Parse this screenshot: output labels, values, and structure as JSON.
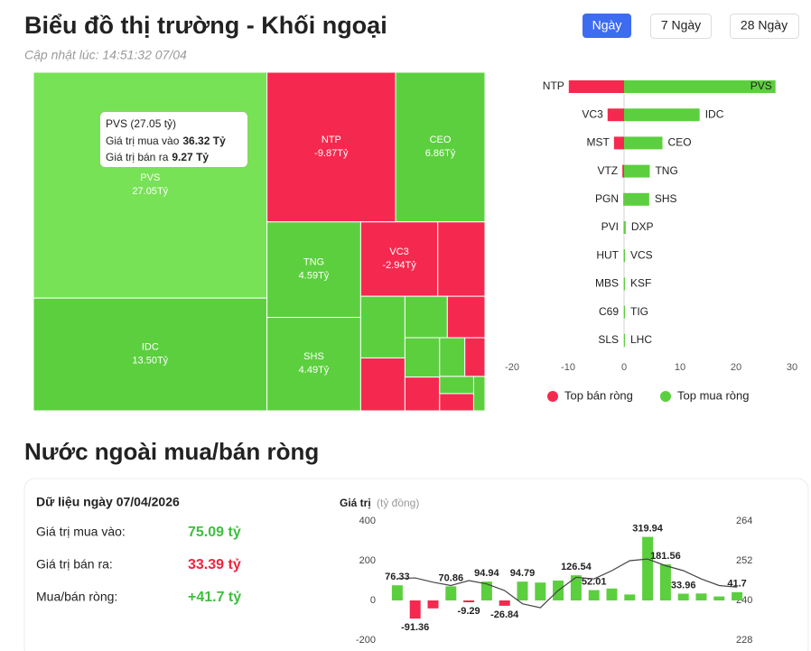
{
  "header": {
    "title": "Biểu đồ thị trường - Khối ngoại",
    "updated": "Cập nhật lúc: 14:51:32 07/04",
    "tabs": [
      "Ngày",
      "7 Ngày",
      "28 Ngày"
    ]
  },
  "tooltip": {
    "title": "PVS (27.05 tỷ)",
    "buy_label": "Giá trị mua vào",
    "buy_value": "36.32 Tỷ",
    "sell_label": "Giá trị bán ra",
    "sell_value": "9.27 Tỷ"
  },
  "section": {
    "title": "Nước ngoài mua/bán ròng",
    "date": "Dữ liệu ngày 07/04/2026",
    "rows": [
      [
        "Giá trị mua vào:",
        "75.09 tỷ"
      ],
      [
        "Giá trị bán ra:",
        "33.39 tỷ"
      ],
      [
        "Mua/bán ròng:",
        "+41.7 tỷ"
      ]
    ]
  },
  "chart_data": [
    {
      "type": "treemap",
      "positive_color": "#5ccf3f",
      "negative_color": "#f5294f",
      "highlight_color": "#77e256",
      "categories": [
        "PVS",
        "IDC",
        "NTP",
        "CEO",
        "TNG",
        "SHS",
        "VC3",
        null,
        null,
        null,
        null,
        null,
        null,
        null,
        null,
        null,
        null,
        null,
        null
      ],
      "values": [
        27.05,
        13.5,
        -9.87,
        6.86,
        4.59,
        4.49,
        -2.94,
        -1.8,
        1.4,
        -1.2,
        0.9,
        -0.8,
        0.7,
        -0.6,
        0.5,
        -0.4,
        0.3,
        -0.3,
        0.2
      ],
      "value_labels": [
        "27.05Tỷ",
        "13.50Tỷ",
        "-9.87Tỷ",
        "6.86Tỷ",
        "4.59Tỷ",
        "4.49Tỷ",
        "-2.94Tỷ",
        null,
        null,
        null,
        null,
        null,
        null,
        null,
        null,
        null,
        null,
        null,
        null
      ]
    },
    {
      "type": "diverging_bar",
      "xlim": [
        -20,
        30
      ],
      "xticks": [
        -20,
        -10,
        0,
        10,
        20,
        30
      ],
      "series": [
        {
          "name": "Top bán ròng",
          "color": "#f5294f",
          "categories": [
            "NTP",
            "VC3",
            "MST",
            "VTZ",
            "PGN",
            "PVI",
            "HUT",
            "MBS",
            "C69",
            "SLS"
          ],
          "values": [
            -9.87,
            -2.94,
            -1.8,
            -0.3,
            -0.1,
            -0.05,
            -0.04,
            -0.03,
            -0.02,
            -0.01
          ]
        },
        {
          "name": "Top mua ròng",
          "color": "#5ccf3f",
          "categories": [
            "PVS",
            "IDC",
            "CEO",
            "TNG",
            "SHS",
            "DXP",
            "VCS",
            "KSF",
            "TIG",
            "LHC"
          ],
          "values": [
            27.05,
            13.5,
            6.86,
            4.59,
            4.49,
            0.3,
            0.1,
            0.05,
            0.03,
            0.02
          ]
        }
      ]
    },
    {
      "type": "bar_line",
      "y_label": "Giá trị",
      "y_unit": "(tỷ đồng)",
      "ylim": [
        -200,
        400
      ],
      "yticks": [
        -200,
        0,
        200,
        400
      ],
      "y2lim": [
        228,
        264
      ],
      "y2ticks": [
        228,
        240,
        252,
        264
      ],
      "series": [
        {
          "color": "#5ccf3f",
          "negative_color": "#f5294f",
          "values": [
            76.33,
            -91.36,
            -40,
            70.86,
            -9.29,
            94.94,
            -26.84,
            94.79,
            90,
            100,
            126.54,
            52.01,
            60,
            30,
            319.94,
            181.56,
            33.96,
            35,
            20,
            41.7
          ],
          "value_labels": [
            "76.33",
            "-91.36",
            null,
            "70.86",
            "-9.29",
            "94.94",
            "-26.84",
            "94.79",
            null,
            null,
            "126.54",
            "52.01",
            null,
            null,
            "319.94",
            "181.56",
            "33.96",
            null,
            null,
            "41.7"
          ]
        },
        {
          "axis": "y2",
          "color": "#444444",
          "values": [
            246.6,
            246.8,
            245.5,
            244.5,
            246,
            245,
            243,
            239,
            237.8,
            243,
            247,
            246.5,
            249,
            252,
            252.5,
            250.5,
            249,
            246.5,
            244.5,
            244
          ]
        }
      ]
    }
  ]
}
